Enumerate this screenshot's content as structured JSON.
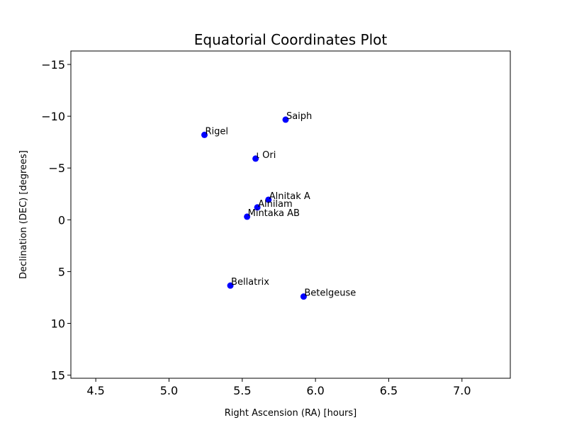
{
  "chart_data": {
    "type": "scatter",
    "title": "Equatorial Coordinates Plot",
    "xlabel": "Right Ascension (RA) [hours]",
    "ylabel": "Declination (DEC) [degrees]",
    "xlim": [
      4.33,
      7.33
    ],
    "ylim": [
      15.3,
      -16.3
    ],
    "y_inverted": true,
    "xticks": [
      4.5,
      5.0,
      5.5,
      6.0,
      6.5,
      7.0
    ],
    "xtick_labels": [
      "4.5",
      "5.0",
      "5.5",
      "6.0",
      "6.5",
      "7.0"
    ],
    "yticks": [
      -15,
      -10,
      -5,
      0,
      5,
      10,
      15
    ],
    "ytick_labels": [
      "−15",
      "−10",
      "−5",
      "0",
      "5",
      "10",
      "15"
    ],
    "grid": false,
    "marker_color": "#0000ff",
    "points": [
      {
        "label": "Saiph",
        "x": 5.796,
        "y": -9.67
      },
      {
        "label": "Rigel",
        "x": 5.242,
        "y": -8.2
      },
      {
        "label": "ι Ori",
        "x": 5.591,
        "y": -5.91
      },
      {
        "label": "Alnitak A",
        "x": 5.679,
        "y": -1.94
      },
      {
        "label": "Alnilam",
        "x": 5.603,
        "y": -1.2
      },
      {
        "label": "Mintaka AB",
        "x": 5.533,
        "y": -0.3
      },
      {
        "label": "Bellatrix",
        "x": 5.419,
        "y": 6.35
      },
      {
        "label": "Betelgeuse",
        "x": 5.919,
        "y": 7.41
      }
    ]
  }
}
